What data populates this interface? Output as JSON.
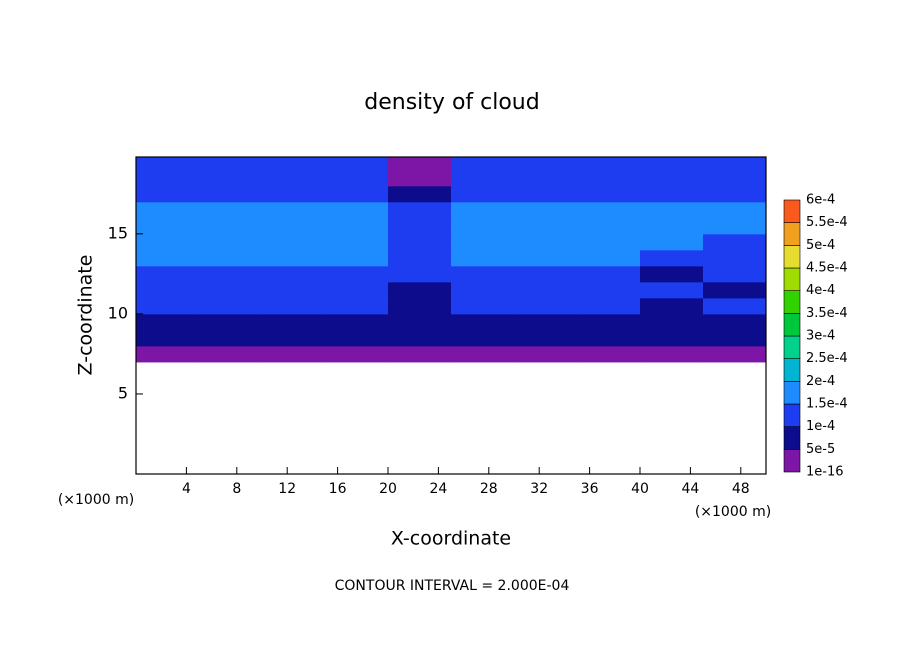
{
  "chart_data": {
    "type": "contour",
    "title": "density of cloud",
    "x_label": "X-coordinate",
    "y_label": "Z-coordinate",
    "x_unit_left": "(×1000 m)",
    "x_unit_right": "(×1000 m)",
    "annotation": "CONTOUR INTERVAL = 2.000E-04",
    "xlim": [
      0,
      50
    ],
    "ylim": [
      0,
      19.8
    ],
    "xticks": [
      4,
      8,
      12,
      16,
      20,
      24,
      28,
      32,
      36,
      40,
      44,
      48
    ],
    "yticks": [
      5,
      10,
      15
    ],
    "x": [
      2.5,
      7.5,
      12.5,
      17.5,
      22.5,
      27.5,
      32.5,
      37.5,
      42.5,
      47.5
    ],
    "z": [
      7.5,
      8.5,
      9.5,
      10.5,
      11.5,
      12.5,
      13.5,
      14.5,
      15.5,
      16.5,
      17.5,
      18.5,
      19.5
    ],
    "values": [
      [
        2e-05,
        2e-05,
        2e-05,
        2e-05,
        2e-05,
        2e-05,
        2e-05,
        2e-05,
        2e-05,
        2e-05
      ],
      [
        7e-05,
        7e-05,
        7e-05,
        7e-05,
        7e-05,
        7e-05,
        7e-05,
        7e-05,
        8e-05,
        7e-05
      ],
      [
        9e-05,
        9e-05,
        9e-05,
        9e-05,
        8e-05,
        9e-05,
        9e-05,
        9e-05,
        9e-05,
        9e-05
      ],
      [
        0.00011,
        0.00011,
        0.00011,
        0.00011,
        8e-05,
        0.00011,
        0.00011,
        0.00011,
        9e-05,
        0.00011
      ],
      [
        0.00012,
        0.00012,
        0.00012,
        0.00012,
        9e-05,
        0.00012,
        0.00012,
        0.00012,
        0.00011,
        8e-05
      ],
      [
        0.00014,
        0.00014,
        0.00014,
        0.00014,
        0.0001,
        0.00014,
        0.00014,
        0.00014,
        8e-05,
        0.00012
      ],
      [
        0.00016,
        0.00016,
        0.00016,
        0.00016,
        0.00011,
        0.00016,
        0.00016,
        0.00016,
        0.00012,
        0.00013
      ],
      [
        0.00017,
        0.00017,
        0.00017,
        0.00017,
        0.00012,
        0.00017,
        0.00017,
        0.00017,
        0.00015,
        0.00014
      ],
      [
        0.00017,
        0.00017,
        0.00017,
        0.00017,
        0.00011,
        0.00017,
        0.00017,
        0.00017,
        0.00016,
        0.00015
      ],
      [
        0.00016,
        0.00016,
        0.00016,
        0.00016,
        0.0001,
        0.00016,
        0.00016,
        0.00016,
        0.00016,
        0.00015
      ],
      [
        0.00012,
        0.00013,
        0.00013,
        0.00013,
        8e-05,
        0.00013,
        0.00013,
        0.00013,
        0.00013,
        0.00013
      ],
      [
        0.00011,
        0.00011,
        0.00011,
        0.00011,
        4e-05,
        0.00011,
        0.00011,
        0.00011,
        0.00011,
        0.00011
      ],
      [
        0.00012,
        0.00012,
        0.00012,
        0.00012,
        3e-05,
        0.00012,
        0.00012,
        0.00012,
        0.00012,
        0.00012
      ]
    ],
    "levels": [
      {
        "value": 1e-16,
        "label": "1e-16"
      },
      {
        "value": 5e-05,
        "label": "5e-5"
      },
      {
        "value": 0.0001,
        "label": "1e-4"
      },
      {
        "value": 0.00015,
        "label": "1.5e-4"
      },
      {
        "value": 0.0002,
        "label": "2e-4"
      },
      {
        "value": 0.00025,
        "label": "2.5e-4"
      },
      {
        "value": 0.0003,
        "label": "3e-4"
      },
      {
        "value": 0.00035,
        "label": "3.5e-4"
      },
      {
        "value": 0.0004,
        "label": "4e-4"
      },
      {
        "value": 0.00045,
        "label": "4.5e-4"
      },
      {
        "value": 0.0005,
        "label": "5e-4"
      },
      {
        "value": 0.00055,
        "label": "5.5e-4"
      },
      {
        "value": 0.0006,
        "label": "6e-4"
      }
    ],
    "colors": [
      "#7d16a6",
      "#0c0c8c",
      "#1e3cf0",
      "#1e8cff",
      "#00b4d2",
      "#00d28c",
      "#00c83c",
      "#32d200",
      "#a0dc00",
      "#e6dc32",
      "#f0a01e",
      "#fa5a1e",
      "#f08c8c"
    ]
  }
}
